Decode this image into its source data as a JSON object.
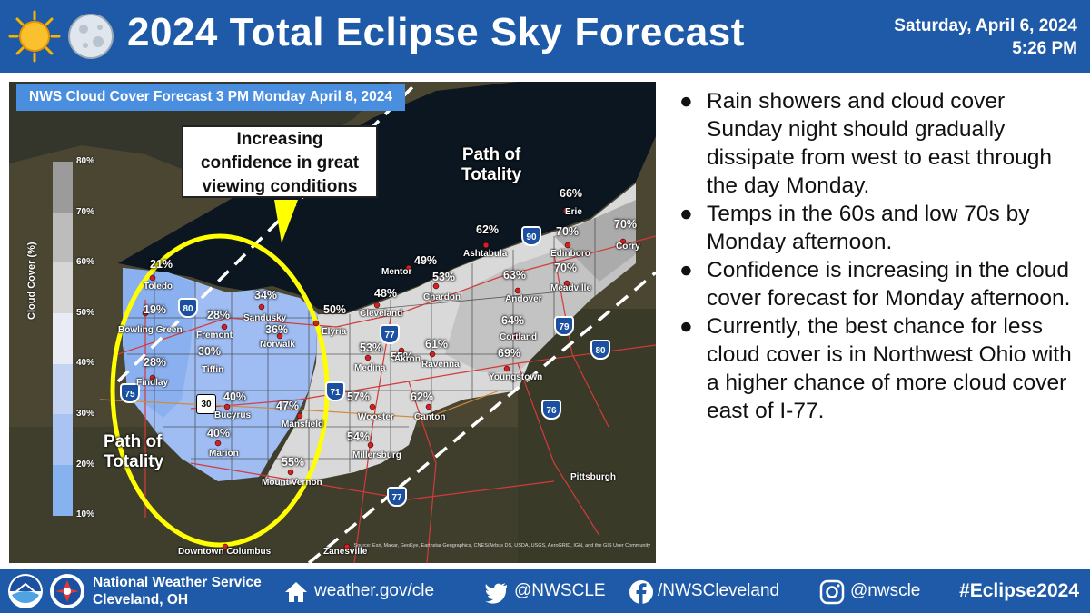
{
  "header": {
    "title": "2024 Total Eclipse Sky Forecast",
    "date": "Saturday, April 6, 2024",
    "time": "5:26 PM",
    "sun_icon": "sun-icon",
    "moon_icon": "moon-icon"
  },
  "map": {
    "caption": "NWS Cloud Cover Forecast 3 PM Monday April 8, 2024",
    "callout": [
      "Increasing",
      "confidence in great",
      "viewing conditions"
    ],
    "path_label_top": [
      "Path of",
      "Totality"
    ],
    "path_label_bottom": [
      "Path of",
      "Totality"
    ],
    "colorbar": {
      "title": "Cloud Cover (%)",
      "ticks": [
        "80%",
        "70%",
        "60%",
        "50%",
        "40%",
        "30%",
        "20%",
        "10%"
      ],
      "colors": [
        "#9b9b9b",
        "#bcbcbc",
        "#d6d6d6",
        "#e9ecf5",
        "#c6d4f4",
        "#a9c4f3",
        "#86b3f0"
      ]
    },
    "percentages": [
      "21%",
      "19%",
      "28%",
      "34%",
      "36%",
      "30%",
      "28%",
      "40%",
      "40%",
      "47%",
      "55%",
      "50%",
      "48%",
      "49%",
      "53%",
      "53%",
      "55%",
      "61%",
      "57%",
      "54%",
      "62%",
      "62%",
      "64%",
      "63%",
      "69%",
      "66%",
      "70%",
      "70%",
      "70%"
    ],
    "cities": [
      "Toledo",
      "Bowling Green",
      "Fremont",
      "Sandusky",
      "Norwalk",
      "Tiffin",
      "Findlay",
      "Bucyrus",
      "Marion",
      "Mansfield",
      "Mount Vernon",
      "Elyria",
      "Cleveland",
      "Mentor",
      "Chardon",
      "Medina",
      "Akron",
      "Ravenna",
      "Wooster",
      "Millersburg",
      "Canton",
      "Ashtabula",
      "Andover",
      "Cortland",
      "Youngstown",
      "Erie",
      "Edinboro",
      "Meadville",
      "Corry",
      "Pittsburgh",
      "Downtown Columbus",
      "Zanesville"
    ],
    "shields": [
      "80",
      "75",
      "30",
      "71",
      "77",
      "90",
      "79",
      "80",
      "76",
      "77"
    ],
    "credits": "Source: Esri, Maxar, GeoEye, Earthstar Geographics, CNES/Airbus DS, USDA, USGS, AeroGRID, IGN, and the GIS User Community"
  },
  "bullets": [
    "Rain showers and cloud cover Sunday night should gradually dissipate from west to east through the day Monday.",
    "Temps in the 60s and low 70s by Monday afternoon.",
    "Confidence is increasing in the cloud cover forecast for Monday afternoon.",
    "Currently, the  best chance for less cloud cover is in Northwest Ohio with a higher chance of more cloud cover east of I-77."
  ],
  "footer": {
    "org_line1": "National Weather Service",
    "org_line2": "Cleveland, OH",
    "website": "weather.gov/cle",
    "twitter": "@NWSCLE",
    "facebook": "/NWSCleveland",
    "instagram": "@nwscle",
    "hashtag": "#Eclipse2024"
  }
}
